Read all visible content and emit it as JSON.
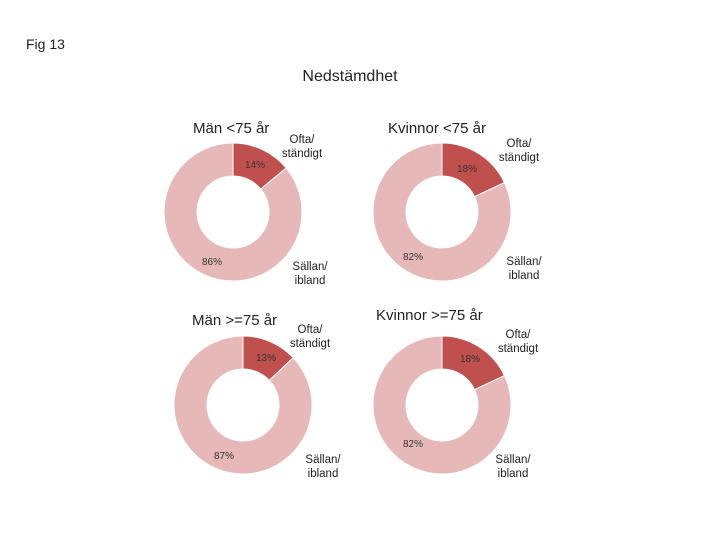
{
  "figure_label": "Fig 13",
  "main_title": "Nedstämdhet",
  "colors": {
    "often": "#c0504d",
    "seldom": "#e6b9b8"
  },
  "chart_data": [
    {
      "type": "pie",
      "title": "Män <75 år",
      "categories": [
        "Ofta/ ständigt",
        "Sällan/ ibland"
      ],
      "values": [
        14,
        86
      ],
      "value_labels": [
        "14%",
        "86%"
      ]
    },
    {
      "type": "pie",
      "title": "Kvinnor <75 år",
      "categories": [
        "Ofta/ ständigt",
        "Sällan/ ibland"
      ],
      "values": [
        18,
        82
      ],
      "value_labels": [
        "18%",
        "82%"
      ]
    },
    {
      "type": "pie",
      "title": "Män >=75 år",
      "categories": [
        "Ofta/ ständigt",
        "Sällan/ ibland"
      ],
      "values": [
        13,
        87
      ],
      "value_labels": [
        "13%",
        "87%"
      ]
    },
    {
      "type": "pie",
      "title": "Kvinnor >=75 år",
      "categories": [
        "Ofta/ ständigt",
        "Sällan/ ibland"
      ],
      "values": [
        18,
        82
      ],
      "value_labels": [
        "18%",
        "82%"
      ]
    }
  ]
}
